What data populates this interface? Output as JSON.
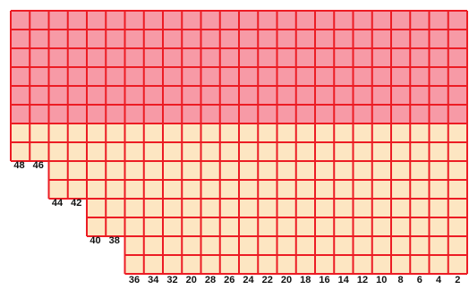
{
  "diagram": {
    "columns": 24,
    "rows": 14,
    "pink_rows": 6,
    "colors": {
      "pink": "#f79aa6",
      "cream": "#fde6c2",
      "grid_line": "#ec1c24",
      "label": "#111111"
    },
    "stair_labels": [
      {
        "text": "48",
        "col": 0,
        "row": 8
      },
      {
        "text": "46",
        "col": 1,
        "row": 8
      },
      {
        "text": "44",
        "col": 2,
        "row": 10
      },
      {
        "text": "42",
        "col": 3,
        "row": 10
      },
      {
        "text": "40",
        "col": 4,
        "row": 12
      },
      {
        "text": "38",
        "col": 5,
        "row": 12
      }
    ],
    "bottom_labels": [
      "36",
      "34",
      "32",
      "20",
      "28",
      "26",
      "24",
      "22",
      "20",
      "18",
      "16",
      "14",
      "12",
      "10",
      "8",
      "6",
      "4",
      "2"
    ],
    "bottom_labels_start_col": 6
  }
}
